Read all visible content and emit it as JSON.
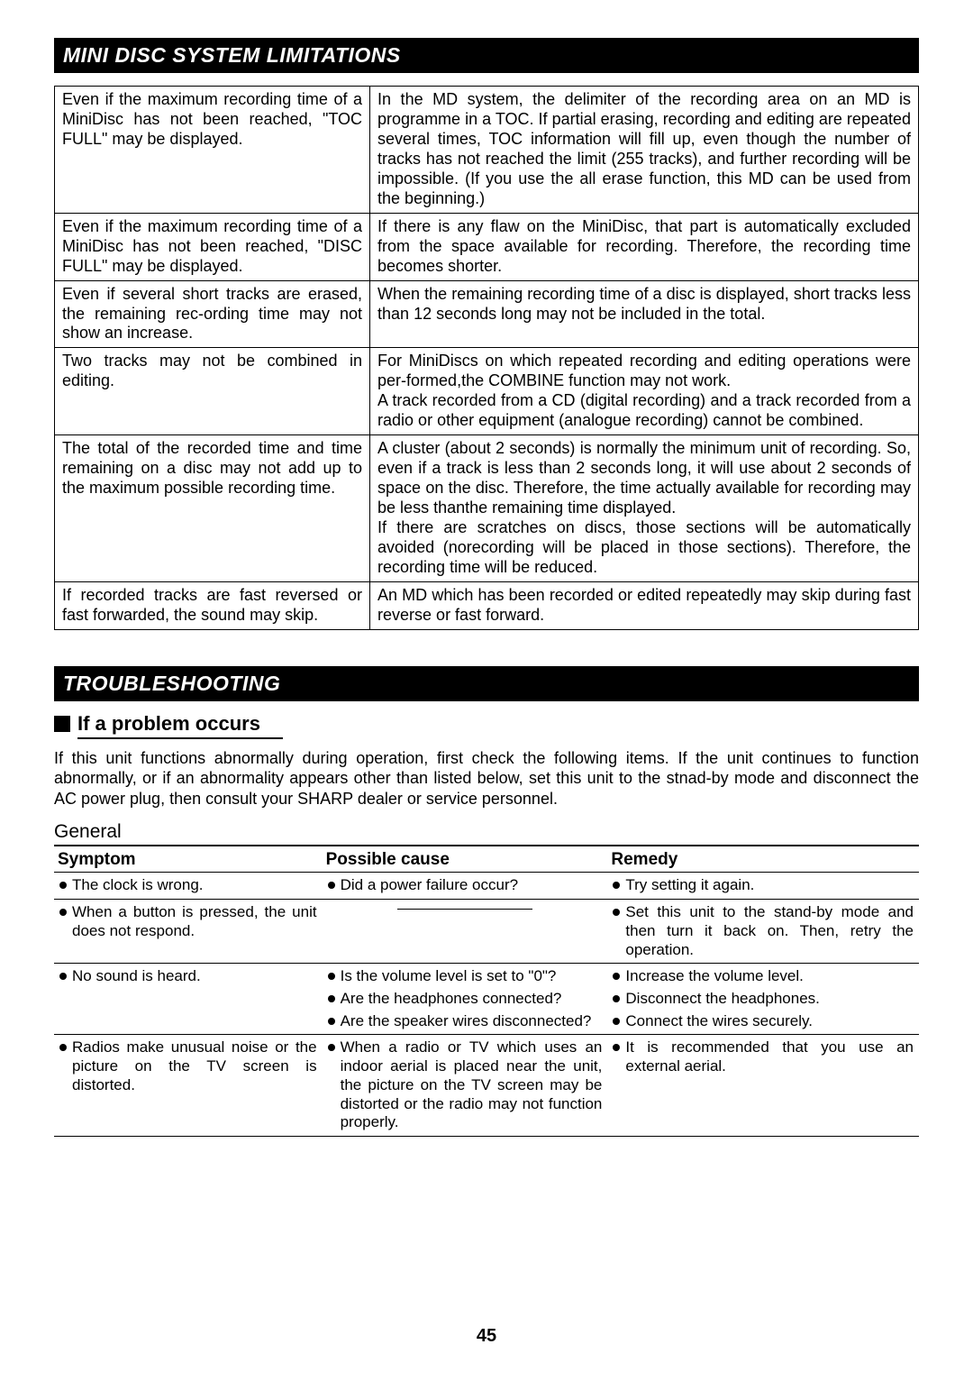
{
  "headers": {
    "section1": "MINI DISC SYSTEM LIMITATIONS",
    "section2": "TROUBLESHOOTING",
    "subheading": "If a problem occurs",
    "category": "General",
    "page_number": "45"
  },
  "limitations": [
    {
      "left": "Even if the maximum recording time of a MiniDisc has not been reached, \"TOC FULL\" may be displayed.",
      "right": "In the MD system, the delimiter of the recording area on an MD is programme in a TOC. If partial erasing, recording and editing are repeated several times, TOC information will fill up, even though the number of tracks has not reached the limit (255 tracks), and further recording will be impossible. (If you use the all erase function, this MD can be used from the beginning.)"
    },
    {
      "left": "Even if the maximum recording time of a MiniDisc has not been reached, \"DISC FULL\" may be displayed.",
      "right": "If there is any flaw on the MiniDisc, that part is automatically excluded from the space available for recording. Therefore, the recording time becomes shorter."
    },
    {
      "left": "Even if several short tracks are erased, the remaining rec-ording time may not show an increase.",
      "right": "When the remaining recording time of a disc is displayed, short tracks less than 12 seconds long may not be included in the total."
    },
    {
      "left": "Two tracks may not be combined in editing.",
      "right": "For MiniDiscs on which repeated recording and editing operations were per-formed,the COMBINE function may not work.\nA track recorded from a CD (digital recording) and a track recorded from a radio or other equipment (analogue recording) cannot be combined."
    },
    {
      "left": "The total of the recorded time and time remaining on a disc may not add up to the maximum possible recording time.",
      "right": "A cluster (about 2 seconds) is normally the minimum unit of recording. So, even if a track is less than 2 seconds long, it will use about 2 seconds of space on the disc. Therefore, the time actually available for recording may be less thanthe remaining time displayed.\nIf there are scratches on discs, those sections will be automatically avoided (norecording will be placed in those sections). Therefore, the recording time will be reduced."
    },
    {
      "left": "If recorded tracks are fast reversed or fast forwarded, the sound may skip.",
      "right": "An MD which has been recorded or edited repeatedly may skip during fast reverse or fast forward."
    }
  ],
  "troubleshooting": {
    "intro": "If this unit functions abnormally during operation, first check the following items. If the unit continues to function abnormally, or if an abnormality appears other than listed below, set this unit to the stnad-by mode and disconnect the AC power plug, then consult your SHARP dealer or service personnel.",
    "columns": {
      "c1": "Symptom",
      "c2": "Possible cause",
      "c3": "Remedy"
    },
    "rows": [
      {
        "symptoms": [
          "The clock is wrong."
        ],
        "causes": [
          "Did a power failure occur?"
        ],
        "remedies": [
          "Try setting it again."
        ],
        "cause_underline": false
      },
      {
        "symptoms": [
          "When a button is pressed, the unit does not respond."
        ],
        "causes": [],
        "remedies": [
          "Set this unit to the stand-by mode and then turn it back on. Then, retry the operation."
        ],
        "cause_underline": true
      },
      {
        "symptoms": [
          "No sound is heard."
        ],
        "causes": [
          "Is the volume level is set to \"0\"?",
          "Are the headphones connected?",
          "Are the speaker wires disconnected?"
        ],
        "remedies": [
          "Increase the volume level.",
          "Disconnect the headphones.",
          "Connect the wires securely."
        ],
        "cause_underline": false
      },
      {
        "symptoms": [
          "Radios make unusual noise or the picture on the TV screen is distorted."
        ],
        "causes": [
          "When a radio or TV which uses an indoor aerial is placed near the unit, the picture on the TV screen may be distorted or the radio may not function properly."
        ],
        "remedies": [
          "It is recommended that you use an external aerial."
        ],
        "cause_underline": false
      }
    ]
  }
}
